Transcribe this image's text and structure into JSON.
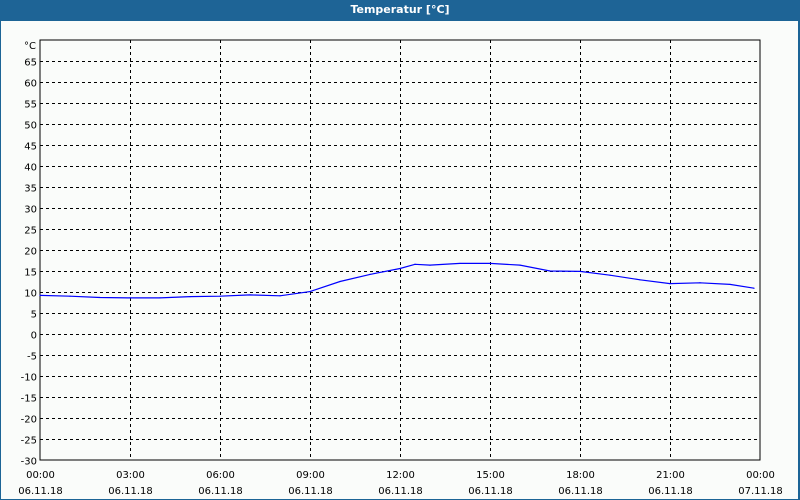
{
  "window": {
    "title": "Temperatur [°C]"
  },
  "chart_data": {
    "type": "line",
    "title": "Temperatur [°C]",
    "ylabel": "°C",
    "xlabel": "",
    "ylim": [
      -30,
      70
    ],
    "yticks": [
      65,
      60,
      55,
      50,
      45,
      40,
      35,
      30,
      25,
      20,
      15,
      10,
      5,
      0,
      -5,
      -10,
      -15,
      -20,
      -25,
      -30
    ],
    "xticks": [
      {
        "time": "00:00",
        "date": "06.11.18"
      },
      {
        "time": "03:00",
        "date": "06.11.18"
      },
      {
        "time": "06:00",
        "date": "06.11.18"
      },
      {
        "time": "09:00",
        "date": "06.11.18"
      },
      {
        "time": "12:00",
        "date": "06.11.18"
      },
      {
        "time": "15:00",
        "date": "06.11.18"
      },
      {
        "time": "18:00",
        "date": "06.11.18"
      },
      {
        "time": "21:00",
        "date": "06.11.18"
      },
      {
        "time": "00:00",
        "date": "07.11.18"
      }
    ],
    "xlim_hours": [
      0,
      24
    ],
    "grid": true,
    "line_color": "#0000ff",
    "series": [
      {
        "x_hours": [
          0,
          1,
          2,
          3,
          4,
          5,
          6,
          7,
          8,
          9,
          10,
          11,
          12,
          12.5,
          13,
          14,
          15,
          16,
          17,
          18,
          19,
          20,
          21,
          22,
          23,
          23.8
        ],
        "values": [
          9.2,
          9.0,
          8.7,
          8.6,
          8.6,
          8.9,
          9.0,
          9.3,
          9.1,
          10.1,
          12.5,
          14.2,
          15.6,
          16.6,
          16.4,
          16.8,
          16.8,
          16.4,
          15.0,
          14.9,
          14.0,
          12.9,
          12.0,
          12.2,
          11.8,
          10.9
        ]
      }
    ]
  }
}
